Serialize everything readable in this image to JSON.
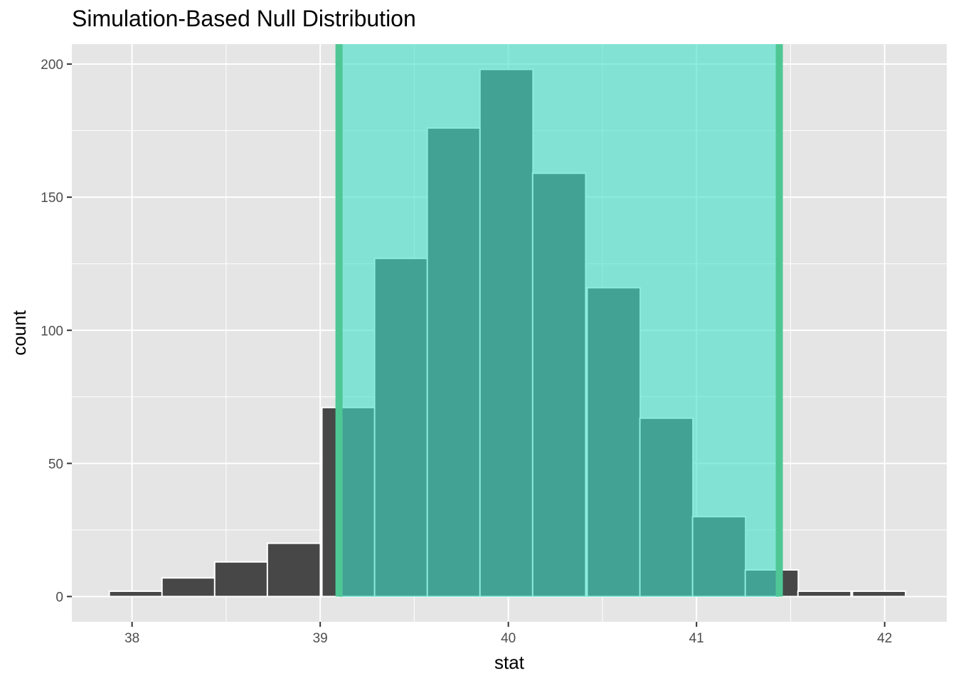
{
  "chart_data": {
    "type": "bar",
    "title": "Simulation-Based Null Distribution",
    "xlabel": "stat",
    "ylabel": "count",
    "xlim": [
      37.68,
      42.33
    ],
    "ylim": [
      -9.5,
      207.5
    ],
    "x_ticks": [
      38,
      39,
      40,
      41,
      42
    ],
    "y_ticks": [
      0,
      50,
      100,
      150,
      200
    ],
    "bin_width": 0.282,
    "bins": [
      {
        "x": 38.02,
        "count": 2
      },
      {
        "x": 38.3,
        "count": 7
      },
      {
        "x": 38.58,
        "count": 13
      },
      {
        "x": 38.86,
        "count": 20
      },
      {
        "x": 39.15,
        "count": 71
      },
      {
        "x": 39.43,
        "count": 127
      },
      {
        "x": 39.71,
        "count": 176
      },
      {
        "x": 39.99,
        "count": 198
      },
      {
        "x": 40.27,
        "count": 159
      },
      {
        "x": 40.56,
        "count": 116
      },
      {
        "x": 40.84,
        "count": 67
      },
      {
        "x": 41.12,
        "count": 30
      },
      {
        "x": 41.4,
        "count": 10
      },
      {
        "x": 41.68,
        "count": 2
      },
      {
        "x": 41.97,
        "count": 2
      }
    ],
    "shaded_interval": {
      "lower": 39.1,
      "upper": 41.44
    },
    "grid": true,
    "colors": {
      "panel_background": "#e5e5e5",
      "gridline": "#ffffff",
      "bar_fill": "#474747",
      "bar_outline": "#ffffff",
      "interval_fill": "#40e0c8",
      "interval_line": "#4fc795"
    }
  }
}
